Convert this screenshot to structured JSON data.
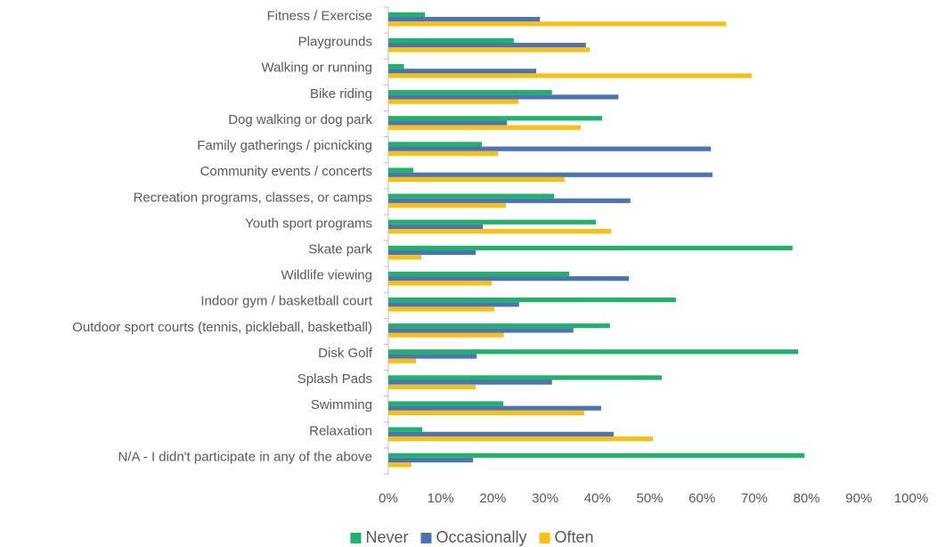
{
  "chart_data": {
    "type": "bar",
    "orientation": "horizontal",
    "categories": [
      "Fitness / Exercise",
      "Playgrounds",
      "Walking or running",
      "Bike riding",
      "Dog walking or dog park",
      "Family gatherings / picnicking",
      "Community events / concerts",
      "Recreation programs, classes, or camps",
      "Youth sport programs",
      "Skate park",
      "Wildlife viewing",
      "Indoor gym / basketball court",
      "Outdoor sport courts (tennis, pickleball, basketball)",
      "Disk Golf",
      "Splash Pads",
      "Swimming",
      "Relaxation",
      "N/A - I didn't participate in any of the above"
    ],
    "series": [
      {
        "name": "Never",
        "color": "#1db36a",
        "values": [
          7,
          24,
          3,
          31.3,
          40.9,
          17.9,
          4.8,
          31.7,
          39.7,
          77.3,
          34.6,
          55,
          42.4,
          78.4,
          52.3,
          22,
          6.5,
          79.6
        ]
      },
      {
        "name": "Occasionally",
        "color": "#4a74b4",
        "values": [
          29,
          37.8,
          28.3,
          44,
          22.7,
          61.7,
          62,
          46.3,
          18.1,
          16.7,
          46,
          25,
          35.4,
          16.9,
          31.3,
          40.7,
          43.1,
          16.2
        ]
      },
      {
        "name": "Often",
        "color": "#fcbf0d",
        "values": [
          64.6,
          38.5,
          69.5,
          24.9,
          36.8,
          21,
          33.7,
          22.5,
          42.6,
          6.3,
          19.8,
          20.3,
          22.1,
          5.3,
          16.7,
          37.5,
          50.6,
          4.4
        ]
      }
    ],
    "xlim": [
      0,
      100
    ],
    "xticks": [
      {
        "value": 0,
        "label": "0%"
      },
      {
        "value": 10,
        "label": "10%"
      },
      {
        "value": 20,
        "label": "20%"
      },
      {
        "value": 30,
        "label": "30%"
      },
      {
        "value": 40,
        "label": "40%"
      },
      {
        "value": 50,
        "label": "50%"
      },
      {
        "value": 60,
        "label": "60%"
      },
      {
        "value": 70,
        "label": "70%"
      },
      {
        "value": 80,
        "label": "80%"
      },
      {
        "value": 90,
        "label": "90%"
      },
      {
        "value": 100,
        "label": "100%"
      }
    ],
    "grid": false,
    "legend": "bottom"
  }
}
